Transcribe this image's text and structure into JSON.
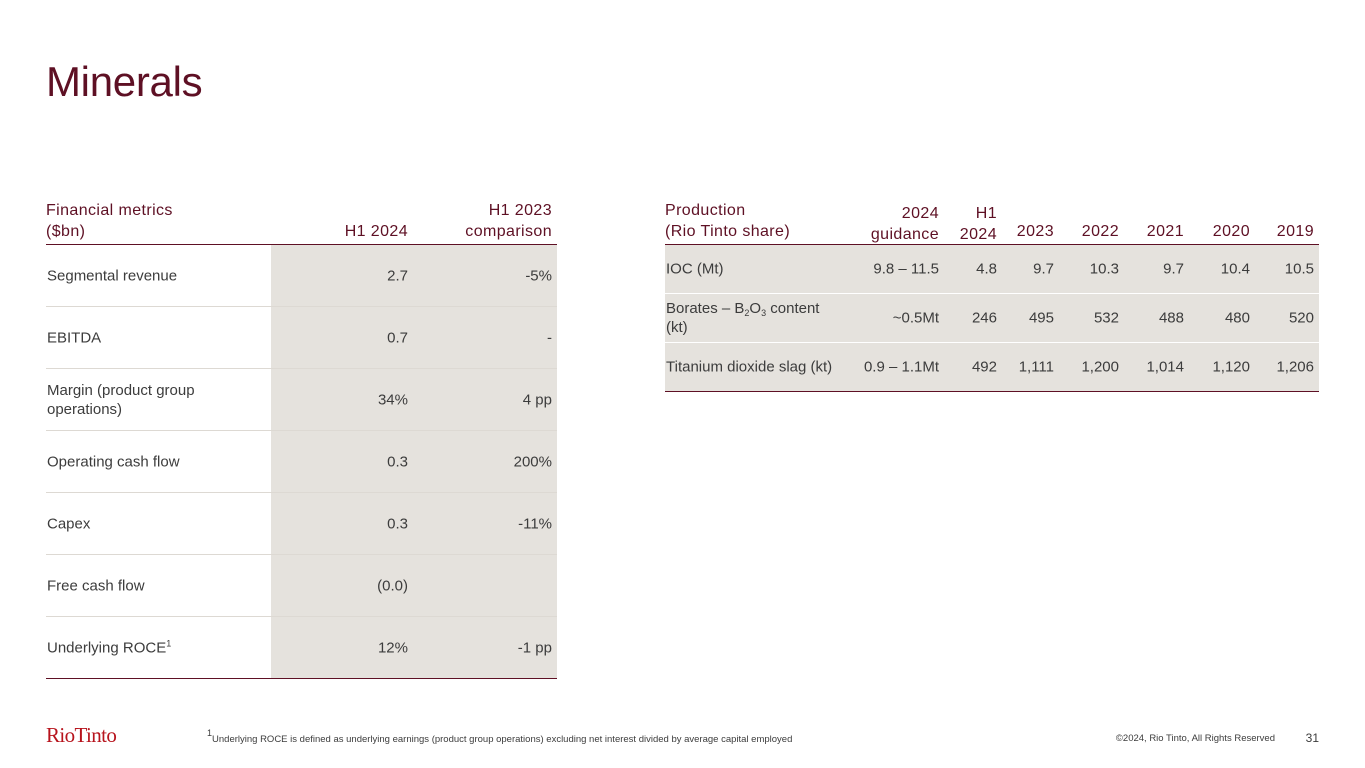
{
  "title": "Minerals",
  "financial": {
    "header": {
      "col0_line1": "Financial metrics",
      "col0_line2": "($bn)",
      "col1": "H1 2024",
      "col2_line1": "H1 2023",
      "col2_line2": "comparison"
    },
    "rows": [
      {
        "label": "Segmental revenue",
        "h1_2024": "2.7",
        "comparison": "-5%"
      },
      {
        "label": "EBITDA",
        "h1_2024": "0.7",
        "comparison": "-"
      },
      {
        "label": "Margin (product group operations)",
        "h1_2024": "34%",
        "comparison": "4 pp"
      },
      {
        "label": "Operating cash flow",
        "h1_2024": "0.3",
        "comparison": "200%"
      },
      {
        "label": "Capex",
        "h1_2024": "0.3",
        "comparison": "-11%"
      },
      {
        "label": "Free cash flow",
        "h1_2024": "(0.0)",
        "comparison": ""
      },
      {
        "label": "Underlying ROCE",
        "label_sup": "1",
        "h1_2024": "12%",
        "comparison": "-1 pp"
      }
    ]
  },
  "production": {
    "header": {
      "col0_line1": "Production",
      "col0_line2": "(Rio Tinto share)",
      "guidance_line1": "2024",
      "guidance_line2": "guidance",
      "h1_line1": "H1",
      "h1_line2": "2024",
      "y2023": "2023",
      "y2022": "2022",
      "y2021": "2021",
      "y2020": "2020",
      "y2019": "2019"
    },
    "rows": [
      {
        "label": "IOC (Mt)",
        "guidance": "9.8 – 11.5",
        "h1": "4.8",
        "y2023": "9.7",
        "y2022": "10.3",
        "y2021": "9.7",
        "y2020": "10.4",
        "y2019": "10.5"
      },
      {
        "label_a": "Borates – B",
        "label_sub1": "2",
        "label_b": "O",
        "label_sub2": "3",
        "label_c": " content (kt)",
        "guidance": "~0.5Mt",
        "h1": "246",
        "y2023": "495",
        "y2022": "532",
        "y2021": "488",
        "y2020": "480",
        "y2019": "520"
      },
      {
        "label": "Titanium dioxide slag (kt)",
        "guidance": "0.9 – 1.1Mt",
        "h1": "492",
        "y2023": "1,111",
        "y2022": "1,200",
        "y2021": "1,014",
        "y2020": "1,120",
        "y2019": "1,206"
      }
    ]
  },
  "footer": {
    "logo": "RioTinto",
    "footnote_sup": "1",
    "footnote": "Underlying ROCE is defined as underlying earnings (product group operations) excluding net interest divided by average capital employed",
    "copyright": "©2024, Rio Tinto, All Rights Reserved",
    "page": "31"
  }
}
